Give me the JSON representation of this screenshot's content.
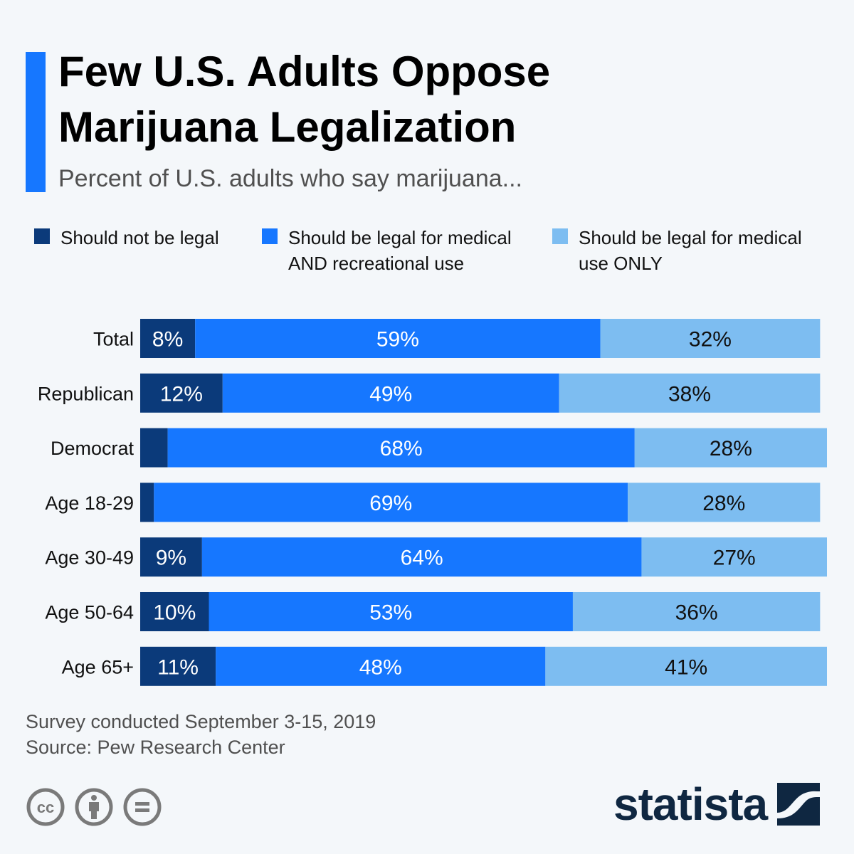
{
  "header": {
    "title_line1": "Few U.S. Adults Oppose",
    "title_line2": "Marijuana Legalization",
    "subtitle": "Percent of U.S. adults who say marijuana..."
  },
  "legend": [
    {
      "line1": "Should not be legal",
      "line2": "",
      "color": "#0b3a7a"
    },
    {
      "line1": "Should be legal for medical",
      "line2": "AND recreational use",
      "color": "#1677ff"
    },
    {
      "line1": "Should be legal for medical",
      "line2": "use ONLY",
      "color": "#7dbdf1"
    }
  ],
  "chart_data": {
    "type": "bar",
    "orientation": "horizontal",
    "stacked": true,
    "title": "Few U.S. Adults Oppose Marijuana Legalization",
    "subtitle": "Percent of U.S. adults who say marijuana...",
    "xlabel": "",
    "ylabel": "",
    "xlim": [
      0,
      100
    ],
    "grid": false,
    "legend_position": "top",
    "categories": [
      "Total",
      "Republican",
      "Democrat",
      "Age 18-29",
      "Age 30-49",
      "Age 50-64",
      "Age 65+"
    ],
    "series": [
      {
        "name": "Should not be legal",
        "color": "#0b3a7a",
        "label_color": "#ffffff",
        "values": [
          8,
          12,
          4,
          2,
          9,
          10,
          11
        ]
      },
      {
        "name": "Should be legal for medical AND recreational use",
        "color": "#1677ff",
        "label_color": "#ffffff",
        "values": [
          59,
          49,
          68,
          69,
          64,
          53,
          48
        ]
      },
      {
        "name": "Should be legal for medical use ONLY",
        "color": "#7dbdf1",
        "label_color": "#111111",
        "values": [
          32,
          38,
          28,
          28,
          27,
          36,
          41
        ]
      }
    ],
    "value_suffix": "%"
  },
  "footer": {
    "note": "Survey conducted September 3-15, 2019",
    "source": "Source: Pew Research Center"
  },
  "license_icons": [
    "creative-commons-icon",
    "attribution-icon",
    "no-derivatives-icon"
  ],
  "brand": {
    "name": "statista",
    "color": "#0f2741"
  }
}
